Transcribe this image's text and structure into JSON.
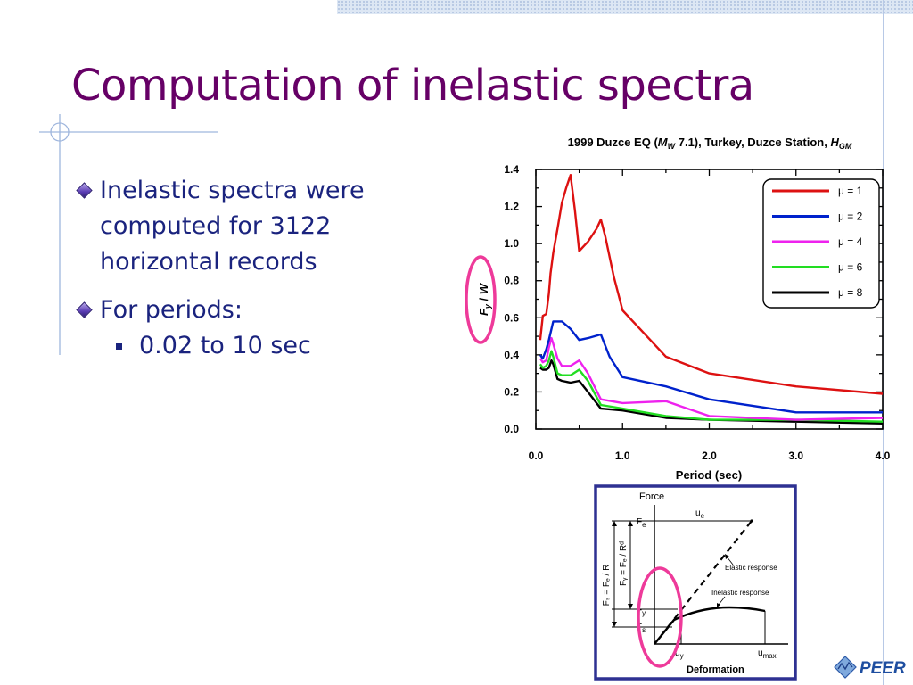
{
  "slide": {
    "title": "Computation of inelastic spectra",
    "bullets": [
      {
        "text": "Inelastic spectra were computed for 3122 horizontal records"
      },
      {
        "text": "For periods:",
        "sub": [
          "0.02 to 10 sec"
        ]
      }
    ],
    "logo_text": "PEER"
  },
  "chart_data": {
    "type": "line",
    "title": {
      "main": "1999 Duzce EQ (",
      "mw": "M",
      "mw_sub": "W",
      "rest": " 7.1), Turkey, Duzce Station, ",
      "h": "H",
      "h_sub": "GM"
    },
    "xlabel": "Period (sec)",
    "ylabel": {
      "f": "F",
      "sub": "y",
      "rest": " / ",
      "w": "W"
    },
    "xlim": [
      0,
      4
    ],
    "ylim": [
      0,
      1.4
    ],
    "xticks": [
      0,
      1,
      2,
      3,
      4
    ],
    "xticklabels": [
      "0.0",
      "1.0",
      "2.0",
      "3.0",
      "4.0"
    ],
    "yticks": [
      0,
      0.2,
      0.4,
      0.6,
      0.8,
      1.0,
      1.2,
      1.4
    ],
    "yticklabels": [
      "0.0",
      "0.2",
      "0.4",
      "0.6",
      "0.8",
      "1.0",
      "1.2",
      "1.4"
    ],
    "legend_position": "top-right",
    "series": [
      {
        "label": "μ = 1",
        "color": "#dd1111",
        "points": [
          [
            0.05,
            0.48
          ],
          [
            0.08,
            0.61
          ],
          [
            0.12,
            0.62
          ],
          [
            0.15,
            0.73
          ],
          [
            0.17,
            0.84
          ],
          [
            0.2,
            0.95
          ],
          [
            0.25,
            1.08
          ],
          [
            0.3,
            1.22
          ],
          [
            0.35,
            1.3
          ],
          [
            0.4,
            1.37
          ],
          [
            0.45,
            1.18
          ],
          [
            0.5,
            0.96
          ],
          [
            0.6,
            1.01
          ],
          [
            0.7,
            1.08
          ],
          [
            0.75,
            1.13
          ],
          [
            0.8,
            1.04
          ],
          [
            0.9,
            0.82
          ],
          [
            1.0,
            0.64
          ],
          [
            1.5,
            0.39
          ],
          [
            2.0,
            0.3
          ],
          [
            3.0,
            0.23
          ],
          [
            4.0,
            0.19
          ]
        ]
      },
      {
        "label": "μ = 2",
        "color": "#0022cc",
        "points": [
          [
            0.05,
            0.4
          ],
          [
            0.08,
            0.38
          ],
          [
            0.12,
            0.43
          ],
          [
            0.15,
            0.48
          ],
          [
            0.2,
            0.58
          ],
          [
            0.25,
            0.58
          ],
          [
            0.3,
            0.58
          ],
          [
            0.4,
            0.54
          ],
          [
            0.5,
            0.48
          ],
          [
            0.6,
            0.49
          ],
          [
            0.75,
            0.51
          ],
          [
            0.85,
            0.39
          ],
          [
            1.0,
            0.28
          ],
          [
            1.5,
            0.23
          ],
          [
            2.0,
            0.16
          ],
          [
            3.0,
            0.09
          ],
          [
            4.0,
            0.09
          ]
        ]
      },
      {
        "label": "μ = 4",
        "color": "#ee22ee",
        "points": [
          [
            0.05,
            0.38
          ],
          [
            0.08,
            0.36
          ],
          [
            0.12,
            0.37
          ],
          [
            0.15,
            0.44
          ],
          [
            0.18,
            0.49
          ],
          [
            0.2,
            0.46
          ],
          [
            0.25,
            0.38
          ],
          [
            0.3,
            0.34
          ],
          [
            0.4,
            0.34
          ],
          [
            0.5,
            0.37
          ],
          [
            0.6,
            0.3
          ],
          [
            0.75,
            0.16
          ],
          [
            1.0,
            0.14
          ],
          [
            1.5,
            0.15
          ],
          [
            2.0,
            0.07
          ],
          [
            3.0,
            0.05
          ],
          [
            4.0,
            0.06
          ]
        ]
      },
      {
        "label": "μ = 6",
        "color": "#22dd22",
        "points": [
          [
            0.05,
            0.35
          ],
          [
            0.08,
            0.33
          ],
          [
            0.12,
            0.34
          ],
          [
            0.15,
            0.37
          ],
          [
            0.18,
            0.42
          ],
          [
            0.2,
            0.39
          ],
          [
            0.25,
            0.3
          ],
          [
            0.3,
            0.29
          ],
          [
            0.4,
            0.29
          ],
          [
            0.5,
            0.32
          ],
          [
            0.6,
            0.26
          ],
          [
            0.75,
            0.13
          ],
          [
            1.0,
            0.11
          ],
          [
            1.5,
            0.07
          ],
          [
            2.0,
            0.05
          ],
          [
            3.0,
            0.05
          ],
          [
            4.0,
            0.04
          ]
        ]
      },
      {
        "label": "μ = 8",
        "color": "#000000",
        "points": [
          [
            0.05,
            0.33
          ],
          [
            0.08,
            0.32
          ],
          [
            0.12,
            0.32
          ],
          [
            0.15,
            0.33
          ],
          [
            0.18,
            0.37
          ],
          [
            0.2,
            0.35
          ],
          [
            0.25,
            0.27
          ],
          [
            0.3,
            0.26
          ],
          [
            0.4,
            0.25
          ],
          [
            0.5,
            0.26
          ],
          [
            0.6,
            0.2
          ],
          [
            0.75,
            0.11
          ],
          [
            1.0,
            0.1
          ],
          [
            1.5,
            0.06
          ],
          [
            2.0,
            0.05
          ],
          [
            3.0,
            0.04
          ],
          [
            4.0,
            0.03
          ]
        ]
      }
    ]
  },
  "diagram": {
    "force_label": "Force",
    "deformation_label": "Deformation",
    "ue_label": {
      "main": "u",
      "sub": "e"
    },
    "fe_label": {
      "main": "F",
      "sub": "e"
    },
    "fy_label": {
      "main": "F",
      "sub": "y"
    },
    "fs_label": {
      "main": "F",
      "sub": "s"
    },
    "uy_label": {
      "main": "u",
      "sub": "y"
    },
    "umax_label": {
      "main": "u",
      "sub": "max"
    },
    "elastic_label": "Elastic response",
    "inelastic_label": "Inelastic response",
    "fs_eq": "Fₛ = Fₑ / R",
    "fy_eq": "Fᵧ = Fₑ / Rᵈ"
  }
}
